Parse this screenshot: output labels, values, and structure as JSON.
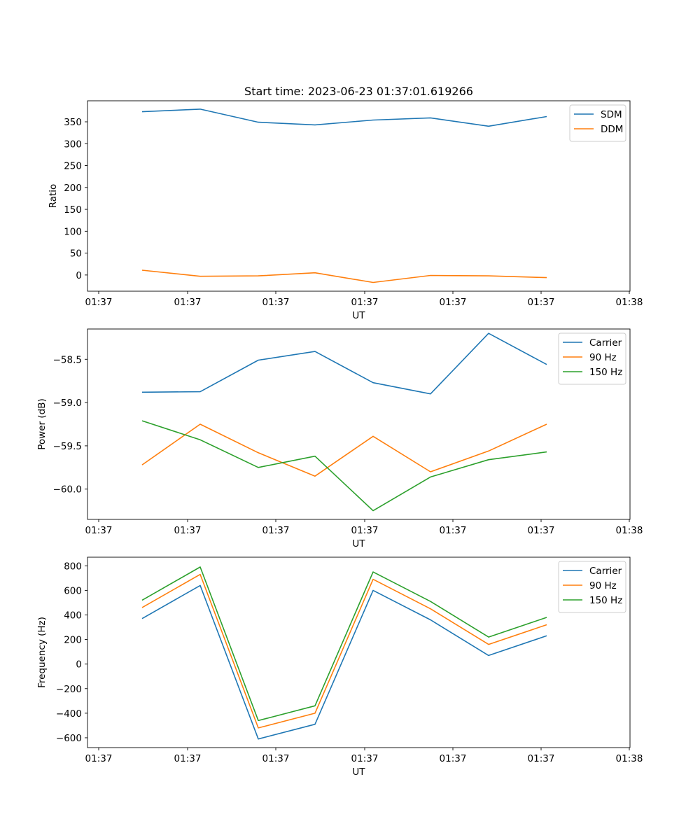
{
  "chart_data": [
    {
      "type": "line",
      "title": "Start time: 2023-06-23 01:37:01.619266",
      "xlabel": "UT",
      "ylabel": "Ratio",
      "x_tick_labels": [
        "01:37",
        "01:37",
        "01:37",
        "01:37",
        "01:37",
        "01:37",
        "01:37",
        "01:38"
      ],
      "yticks": [
        0,
        50,
        100,
        150,
        200,
        250,
        300,
        350
      ],
      "ylim": [
        -37,
        398
      ],
      "legend": "top-right",
      "grid": false,
      "series": [
        {
          "name": "SDM",
          "color": "#1f77b4",
          "values": [
            373,
            379,
            349,
            343,
            354,
            359,
            340,
            362
          ]
        },
        {
          "name": "DDM",
          "color": "#ff7f0e",
          "values": [
            11,
            -3,
            -2,
            5,
            -17,
            -1,
            -2,
            -6
          ]
        }
      ]
    },
    {
      "type": "line",
      "title": "",
      "xlabel": "UT",
      "ylabel": "Power (dB)",
      "x_tick_labels": [
        "01:37",
        "01:37",
        "01:37",
        "01:37",
        "01:37",
        "01:37",
        "01:37",
        "01:38"
      ],
      "yticks": [
        -60.0,
        -59.5,
        -59.0,
        -58.5
      ],
      "ytick_labels": [
        "−60.0",
        "−59.5",
        "−59.0",
        "−58.5"
      ],
      "ylim": [
        -60.35,
        -58.15
      ],
      "legend": "top-right",
      "grid": false,
      "series": [
        {
          "name": "Carrier",
          "color": "#1f77b4",
          "values": [
            -58.88,
            -58.875,
            -58.51,
            -58.41,
            -58.77,
            -58.9,
            -58.2,
            -58.56
          ]
        },
        {
          "name": "90 Hz",
          "color": "#ff7f0e",
          "values": [
            -59.72,
            -59.25,
            -59.58,
            -59.85,
            -59.39,
            -59.8,
            -59.56,
            -59.25
          ]
        },
        {
          "name": "150 Hz",
          "color": "#2ca02c",
          "values": [
            -59.21,
            -59.43,
            -59.75,
            -59.62,
            -60.25,
            -59.86,
            -59.66,
            -59.57
          ]
        }
      ]
    },
    {
      "type": "line",
      "title": "",
      "xlabel": "UT",
      "ylabel": "Frequency (Hz)",
      "x_tick_labels": [
        "01:37",
        "01:37",
        "01:37",
        "01:37",
        "01:37",
        "01:37",
        "01:37",
        "01:38"
      ],
      "yticks": [
        -600,
        -400,
        -200,
        0,
        200,
        400,
        600,
        800
      ],
      "ytick_labels": [
        "−600",
        "−400",
        "−200",
        "0",
        "200",
        "400",
        "600",
        "800"
      ],
      "ylim": [
        -680,
        870
      ],
      "legend": "top-right",
      "grid": false,
      "series": [
        {
          "name": "Carrier",
          "color": "#1f77b4",
          "values": [
            370,
            640,
            -610,
            -490,
            600,
            360,
            70,
            230
          ]
        },
        {
          "name": "90 Hz",
          "color": "#ff7f0e",
          "values": [
            460,
            730,
            -520,
            -400,
            690,
            450,
            160,
            320
          ]
        },
        {
          "name": "150 Hz",
          "color": "#2ca02c",
          "values": [
            520,
            790,
            -460,
            -340,
            750,
            510,
            220,
            380
          ]
        }
      ]
    }
  ]
}
